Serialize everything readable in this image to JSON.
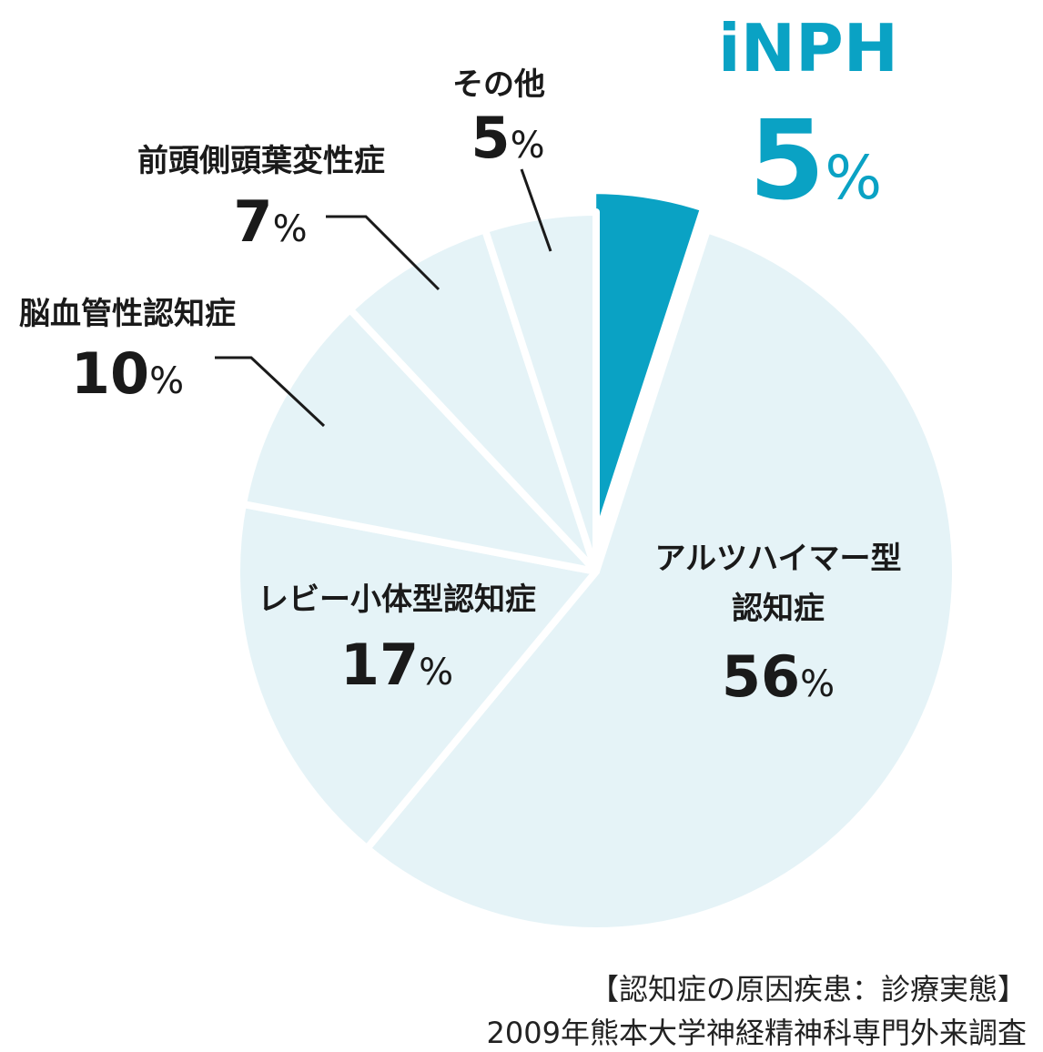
{
  "chart_data": {
    "type": "pie",
    "slices": [
      {
        "label": "iNPH",
        "value": 5,
        "display": "5",
        "unit": "%",
        "color": "#0aa2c4",
        "exploded": true
      },
      {
        "label": "アルツハイマー型認知症",
        "label_lines": [
          "アルツハイマー型",
          "認知症"
        ],
        "value": 56,
        "display": "56",
        "unit": "%",
        "color": "#e5f3f7"
      },
      {
        "label": "レビー小体型認知症",
        "label_lines": [
          "レビー小体型認知症"
        ],
        "value": 17,
        "display": "17",
        "unit": "%",
        "color": "#e5f3f7"
      },
      {
        "label": "脳血管性認知症",
        "label_lines": [
          "脳血管性認知症"
        ],
        "value": 10,
        "display": "10",
        "unit": "%",
        "color": "#e5f3f7"
      },
      {
        "label": "前頭側頭葉変性症",
        "label_lines": [
          "前頭側頭葉変性症"
        ],
        "value": 7,
        "display": "7",
        "unit": "%",
        "color": "#e5f3f7"
      },
      {
        "label": "その他",
        "label_lines": [
          "その他"
        ],
        "value": 5,
        "display": "5",
        "unit": "%",
        "color": "#e5f3f7"
      }
    ]
  },
  "source": {
    "line1": "【認知症の原因疾患：診療実態】",
    "line2": "2009年熊本大学神経精神科専門外来調査"
  }
}
